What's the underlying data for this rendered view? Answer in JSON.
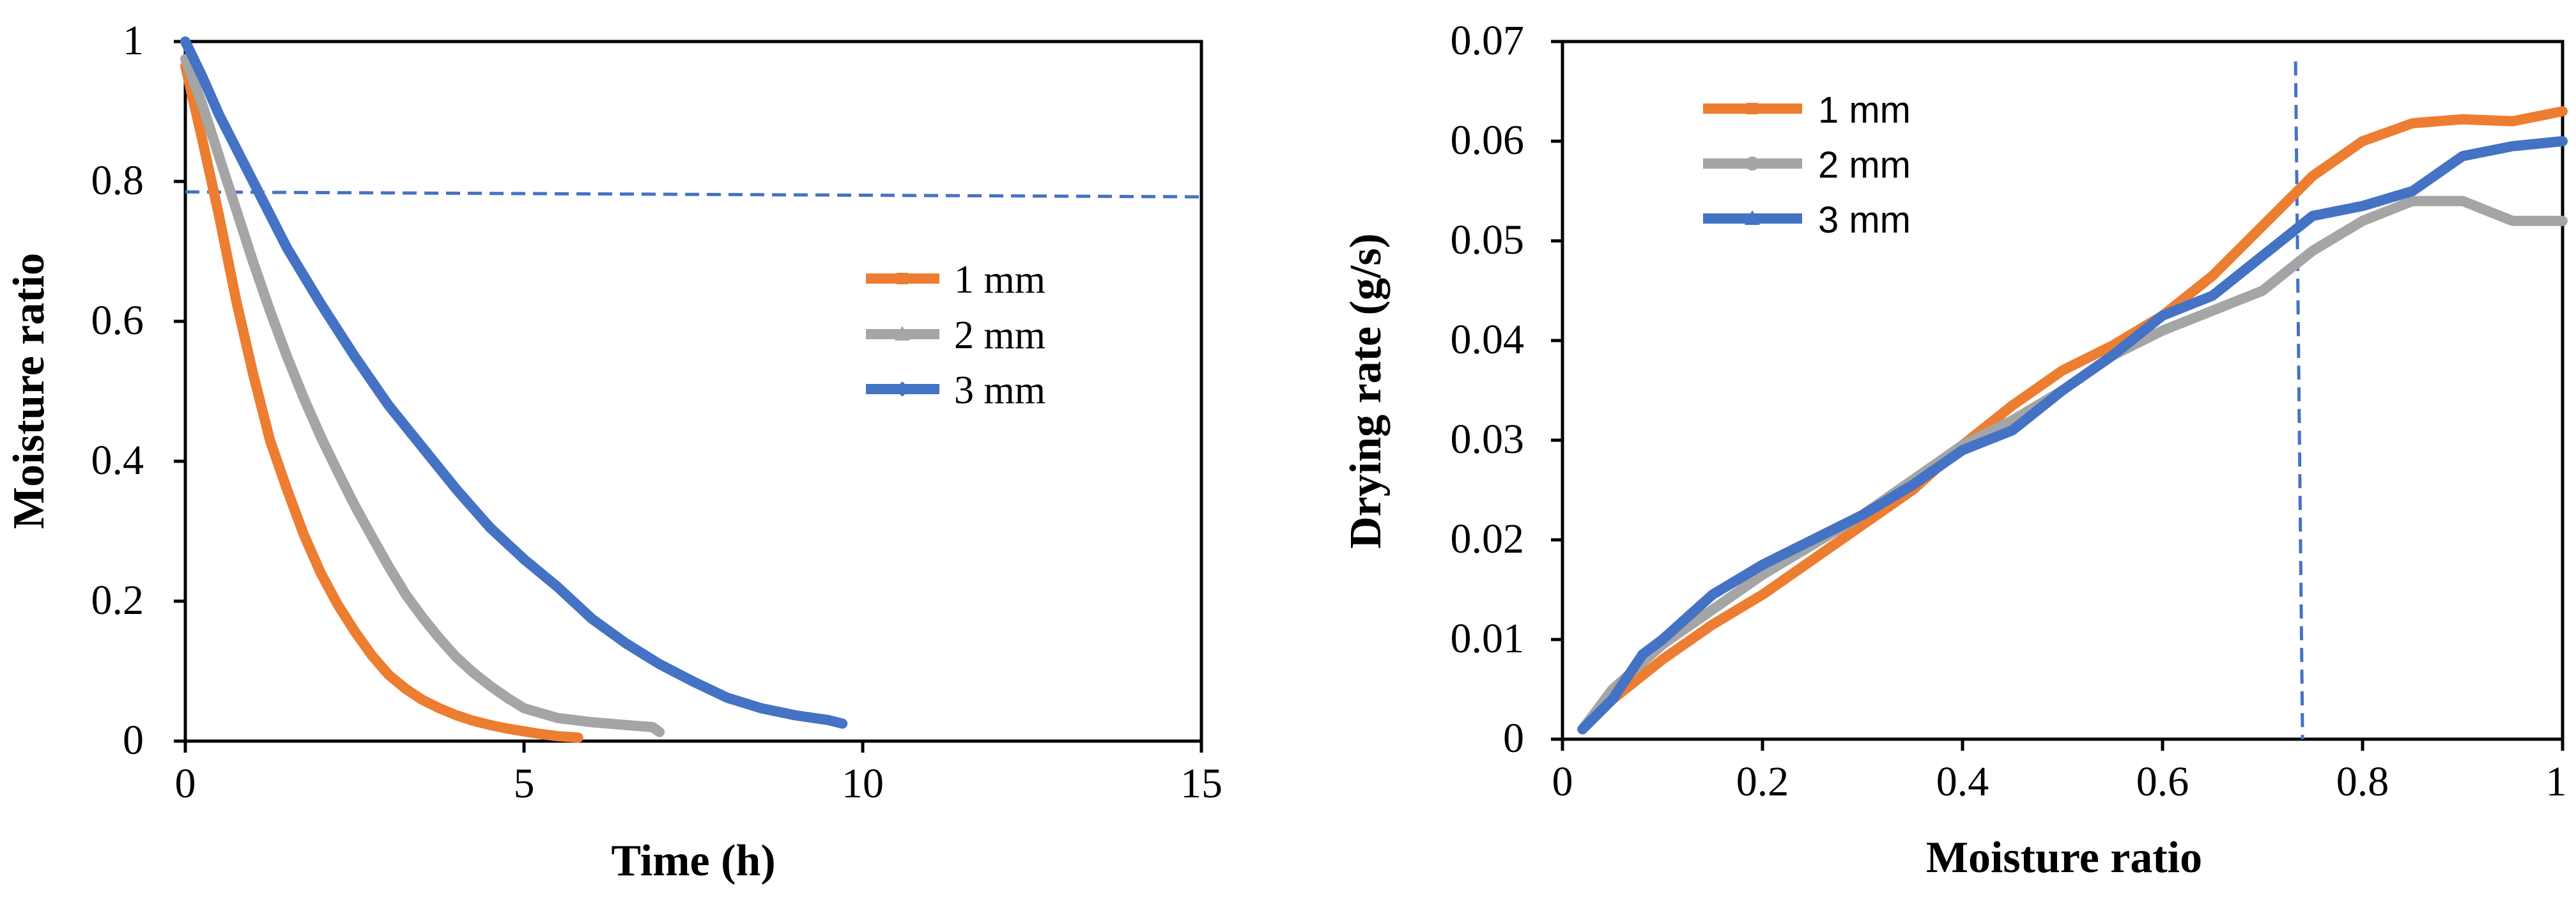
{
  "chart_data": [
    {
      "type": "line",
      "xlabel": "Time (h)",
      "ylabel": "Moisture ratio",
      "xlim": [
        0,
        15
      ],
      "ylim": [
        0,
        1
      ],
      "xticks": [
        0,
        5,
        10,
        15
      ],
      "yticks": [
        0,
        0.2,
        0.4,
        0.6,
        0.8,
        1
      ],
      "xtick_labels": [
        "0",
        "5",
        "10",
        "15"
      ],
      "ytick_labels": [
        "0",
        "0.2",
        "0.4",
        "0.6",
        "0.8",
        "1"
      ],
      "legend": {
        "placement": "right",
        "entries": [
          "1 mm",
          "2 mm",
          "3 mm"
        ]
      },
      "reference_line": {
        "orientation": "horizontal",
        "style": "dashed",
        "color": "#4472C4",
        "x": [
          0,
          15
        ],
        "y": [
          0.785,
          0.778
        ]
      },
      "series": [
        {
          "name": "1 mm",
          "color": "#ED7D31",
          "marker": "square",
          "x": [
            0,
            0.25,
            0.5,
            0.75,
            1,
            1.25,
            1.5,
            1.75,
            2,
            2.25,
            2.5,
            2.75,
            3,
            3.25,
            3.5,
            3.75,
            4,
            4.25,
            4.5,
            4.75,
            5,
            5.25,
            5.5,
            5.8
          ],
          "y": [
            0.965,
            0.86,
            0.75,
            0.63,
            0.525,
            0.43,
            0.36,
            0.295,
            0.24,
            0.195,
            0.157,
            0.123,
            0.095,
            0.075,
            0.059,
            0.047,
            0.037,
            0.029,
            0.023,
            0.018,
            0.014,
            0.01,
            0.007,
            0.005
          ]
        },
        {
          "name": "2 mm",
          "color": "#A5A5A5",
          "marker": "triangle",
          "x": [
            0,
            0.25,
            0.5,
            0.75,
            1,
            1.25,
            1.5,
            1.75,
            2,
            2.25,
            2.5,
            2.75,
            3,
            3.25,
            3.5,
            3.75,
            4,
            4.25,
            4.5,
            4.75,
            5,
            5.5,
            6,
            6.5,
            6.9,
            7
          ],
          "y": [
            0.975,
            0.91,
            0.835,
            0.76,
            0.685,
            0.615,
            0.55,
            0.49,
            0.435,
            0.385,
            0.337,
            0.293,
            0.25,
            0.21,
            0.177,
            0.147,
            0.12,
            0.098,
            0.079,
            0.062,
            0.047,
            0.033,
            0.027,
            0.023,
            0.02,
            0.013
          ]
        },
        {
          "name": "3 mm",
          "color": "#4472C4",
          "marker": "diamond",
          "x": [
            0,
            0.25,
            0.5,
            1,
            1.5,
            2,
            2.5,
            3,
            3.5,
            4,
            4.5,
            5,
            5.5,
            6,
            6.5,
            7,
            7.5,
            8,
            8.5,
            9,
            9.5,
            9.7
          ],
          "y": [
            1.0,
            0.95,
            0.895,
            0.8,
            0.705,
            0.625,
            0.55,
            0.48,
            0.42,
            0.36,
            0.305,
            0.26,
            0.22,
            0.175,
            0.14,
            0.11,
            0.085,
            0.062,
            0.047,
            0.037,
            0.03,
            0.025
          ]
        }
      ]
    },
    {
      "type": "line",
      "xlabel": "Moisture ratio",
      "ylabel": "Drying rate (g/s)",
      "xlim": [
        0,
        1
      ],
      "ylim": [
        0,
        0.07
      ],
      "xticks": [
        0,
        0.2,
        0.4,
        0.6,
        0.8,
        1
      ],
      "yticks": [
        0,
        0.01,
        0.02,
        0.03,
        0.04,
        0.05,
        0.06,
        0.07
      ],
      "xtick_labels": [
        "0",
        "0.2",
        "0.4",
        "0.6",
        "0.8",
        "1"
      ],
      "ytick_labels": [
        "0",
        "0.01",
        "0.02",
        "0.03",
        "0.04",
        "0.05",
        "0.06",
        "0.07"
      ],
      "legend": {
        "placement": "top-left",
        "entries": [
          "1 mm",
          "2 mm",
          "3 mm"
        ]
      },
      "reference_line": {
        "orientation": "vertical",
        "style": "dashed",
        "color": "#4472C4",
        "x": [
          0.733,
          0.74
        ],
        "y": [
          0.068,
          0
        ]
      },
      "series": [
        {
          "name": "1 mm",
          "color": "#ED7D31",
          "marker": "square",
          "x": [
            0.02,
            0.05,
            0.1,
            0.15,
            0.2,
            0.25,
            0.3,
            0.35,
            0.4,
            0.45,
            0.5,
            0.55,
            0.6,
            0.65,
            0.7,
            0.75,
            0.8,
            0.85,
            0.9,
            0.95,
            1.0
          ],
          "y": [
            0.001,
            0.004,
            0.008,
            0.0115,
            0.0145,
            0.018,
            0.0215,
            0.025,
            0.0295,
            0.0335,
            0.037,
            0.0395,
            0.0425,
            0.0465,
            0.0515,
            0.0565,
            0.06,
            0.0618,
            0.0622,
            0.062,
            0.063
          ]
        },
        {
          "name": "2 mm",
          "color": "#A5A5A5",
          "marker": "circle",
          "x": [
            0.02,
            0.05,
            0.1,
            0.15,
            0.2,
            0.25,
            0.3,
            0.35,
            0.4,
            0.45,
            0.5,
            0.55,
            0.6,
            0.65,
            0.7,
            0.75,
            0.8,
            0.85,
            0.9,
            0.95,
            1.0
          ],
          "y": [
            0.001,
            0.005,
            0.0095,
            0.013,
            0.0165,
            0.0195,
            0.0225,
            0.026,
            0.0295,
            0.032,
            0.035,
            0.0385,
            0.041,
            0.043,
            0.045,
            0.049,
            0.052,
            0.054,
            0.054,
            0.052,
            0.052
          ]
        },
        {
          "name": "3 mm",
          "color": "#4472C4",
          "marker": "triangle",
          "x": [
            0.02,
            0.05,
            0.08,
            0.1,
            0.15,
            0.2,
            0.25,
            0.3,
            0.35,
            0.4,
            0.45,
            0.5,
            0.55,
            0.6,
            0.65,
            0.7,
            0.75,
            0.8,
            0.85,
            0.9,
            0.95,
            1.0
          ],
          "y": [
            0.001,
            0.004,
            0.0085,
            0.01,
            0.0145,
            0.0175,
            0.02,
            0.0225,
            0.0255,
            0.029,
            0.031,
            0.035,
            0.0385,
            0.0425,
            0.0445,
            0.0485,
            0.0525,
            0.0535,
            0.055,
            0.0585,
            0.0595,
            0.06
          ]
        }
      ]
    }
  ]
}
